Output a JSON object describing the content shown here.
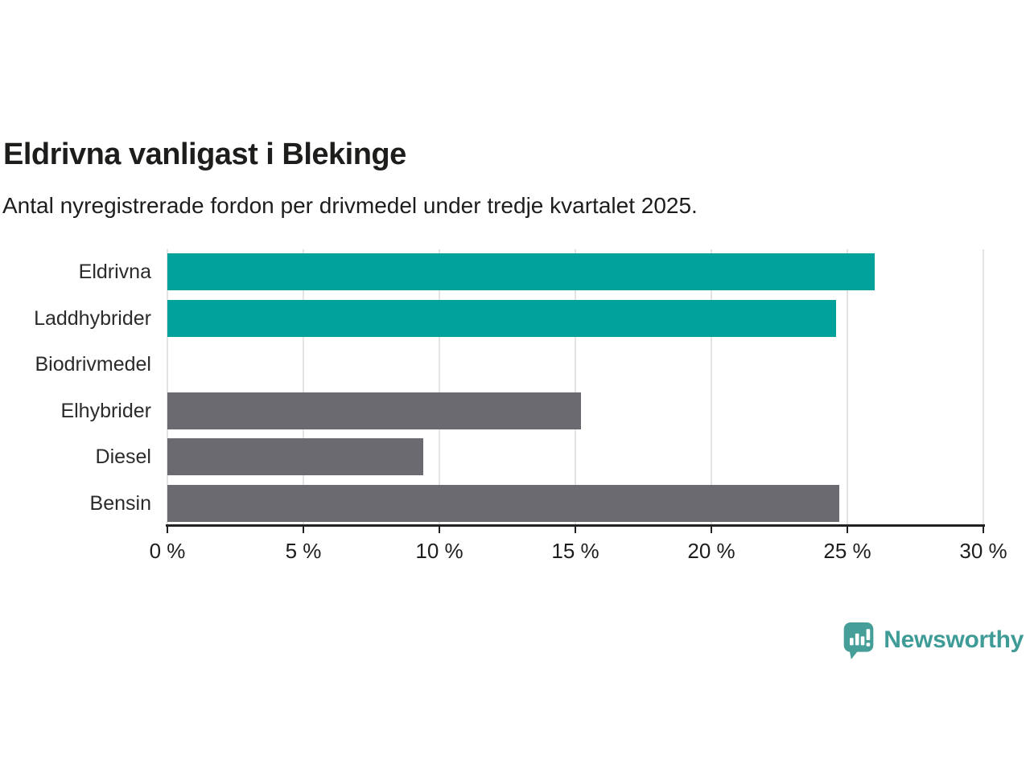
{
  "header": {
    "title": "Eldrivna vanligast i Blekinge",
    "subtitle": "Antal nyregistrerade fordon per drivmedel under tredje kvartalet 2025."
  },
  "chart_data": {
    "type": "bar",
    "orientation": "horizontal",
    "title": "Eldrivna vanligast i Blekinge",
    "subtitle": "Antal nyregistrerade fordon per drivmedel under tredje kvartalet 2025.",
    "categories": [
      "Eldrivna",
      "Laddhybrider",
      "Biodrivmedel",
      "Elhybrider",
      "Diesel",
      "Bensin"
    ],
    "values": [
      26.0,
      24.6,
      0,
      15.2,
      9.4,
      24.7
    ],
    "unit": "%",
    "bar_colors": [
      "#00a29b",
      "#00a29b",
      "#6b6a71",
      "#6b6a71",
      "#6b6a71",
      "#6b6a71"
    ],
    "xlabel": "",
    "ylabel": "",
    "xlim": [
      0,
      30
    ],
    "x_ticks": [
      0,
      5,
      10,
      15,
      20,
      25,
      30
    ],
    "x_tick_labels": [
      "0 %",
      "5 %",
      "10 %",
      "15 %",
      "20 %",
      "25 %",
      "30 %"
    ],
    "grid": true,
    "legend": "none"
  },
  "colors": {
    "highlight_bar": "#00a29b",
    "default_bar": "#6b6a71",
    "grid_line": "#e3e3e3",
    "axis": "#222222",
    "text": "#1d1d1b",
    "logo": "#3f9b96"
  },
  "branding": {
    "logo_text": "Newsworthy",
    "logo_icon": "bar-chart-speech-bubble-icon"
  }
}
